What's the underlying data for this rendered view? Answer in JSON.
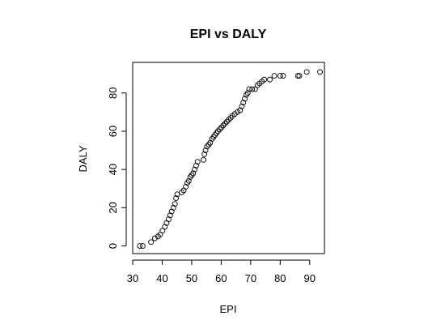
{
  "chart_data": {
    "type": "scatter",
    "title": "EPI vs DALY",
    "xlabel": "EPI",
    "ylabel": "DALY",
    "xlim": [
      30,
      95
    ],
    "ylim": [
      -4,
      96
    ],
    "xticks": [
      30,
      40,
      50,
      60,
      70,
      80,
      90
    ],
    "yticks": [
      0,
      20,
      40,
      60,
      80
    ],
    "grid": false,
    "legend": "none",
    "marker": "open-circle",
    "points": [
      [
        32.4,
        0
      ],
      [
        33.4,
        0
      ],
      [
        36.2,
        2
      ],
      [
        37.5,
        4
      ],
      [
        38.6,
        5
      ],
      [
        39.3,
        6
      ],
      [
        40.1,
        8
      ],
      [
        40.9,
        10
      ],
      [
        41.5,
        12
      ],
      [
        42.2,
        14
      ],
      [
        42.7,
        16
      ],
      [
        43.2,
        18
      ],
      [
        43.8,
        20
      ],
      [
        44.3,
        22
      ],
      [
        44.7,
        25
      ],
      [
        45.1,
        27
      ],
      [
        46.6,
        28
      ],
      [
        47.3,
        29
      ],
      [
        48.0,
        31
      ],
      [
        48.5,
        33
      ],
      [
        49.0,
        34
      ],
      [
        49.5,
        36
      ],
      [
        50.0,
        37
      ],
      [
        50.5,
        38
      ],
      [
        51.0,
        40
      ],
      [
        51.5,
        42
      ],
      [
        52.0,
        44
      ],
      [
        54.0,
        45
      ],
      [
        54.3,
        48
      ],
      [
        54.7,
        50
      ],
      [
        55.2,
        52
      ],
      [
        55.8,
        53
      ],
      [
        56.3,
        54
      ],
      [
        56.9,
        56
      ],
      [
        57.4,
        57
      ],
      [
        57.9,
        58
      ],
      [
        58.4,
        59
      ],
      [
        58.9,
        60
      ],
      [
        59.5,
        61
      ],
      [
        60.1,
        62
      ],
      [
        60.7,
        63
      ],
      [
        61.3,
        64
      ],
      [
        61.9,
        65
      ],
      [
        62.5,
        66
      ],
      [
        63.2,
        67
      ],
      [
        63.8,
        68
      ],
      [
        64.6,
        69
      ],
      [
        65.5,
        70
      ],
      [
        66.4,
        71
      ],
      [
        67.0,
        73
      ],
      [
        67.5,
        75
      ],
      [
        68.0,
        77
      ],
      [
        68.5,
        79
      ],
      [
        69.0,
        80
      ],
      [
        69.5,
        82
      ],
      [
        70.5,
        82
      ],
      [
        71.5,
        82
      ],
      [
        72.3,
        84
      ],
      [
        73.0,
        85
      ],
      [
        73.8,
        86
      ],
      [
        74.6,
        87
      ],
      [
        76.5,
        87
      ],
      [
        78.0,
        89
      ],
      [
        80.0,
        89
      ],
      [
        81.0,
        89
      ],
      [
        86.0,
        89
      ],
      [
        86.5,
        89
      ],
      [
        89.0,
        91
      ],
      [
        93.5,
        91
      ]
    ]
  }
}
